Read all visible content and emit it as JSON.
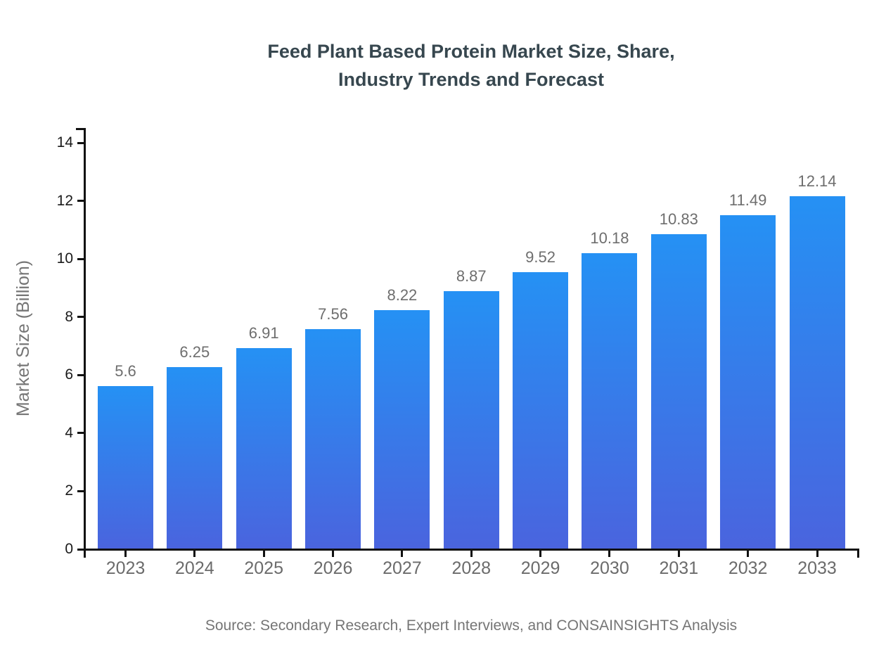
{
  "title": {
    "line1": "Feed Plant Based Protein Market Size, Share,",
    "line2": "Industry Trends and Forecast"
  },
  "source_note": "Source: Secondary Research, Expert Interviews, and CONSAINSIGHTS Analysis",
  "chart_data": {
    "type": "bar",
    "title": "Feed Plant Based Protein Market Size, Share, Industry Trends and Forecast",
    "categories": [
      "2023",
      "2024",
      "2025",
      "2026",
      "2027",
      "2028",
      "2029",
      "2030",
      "2031",
      "2032",
      "2033"
    ],
    "values": [
      5.6,
      6.25,
      6.91,
      7.56,
      8.22,
      8.87,
      9.52,
      10.18,
      10.83,
      11.49,
      12.14
    ],
    "value_labels": [
      "5.6",
      "6.25",
      "6.91",
      "7.56",
      "8.22",
      "8.87",
      "9.52",
      "10.18",
      "10.83",
      "11.49",
      "12.14"
    ],
    "xlabel": "",
    "ylabel": "Market Size (Billion)",
    "ylim": [
      0,
      14
    ],
    "yticks": [
      0,
      2,
      4,
      6,
      8,
      10,
      12,
      14
    ],
    "grid": false,
    "legend": false,
    "bar_gradient_top": "#2591F4",
    "bar_gradient_bottom": "#4A64DE",
    "axis_color": "#111111",
    "y_tick_label_color": "#1a1a1a",
    "x_tick_label_color": "#6B6B6B",
    "value_label_color": "#6E6E6E",
    "title_color": "#37474F",
    "source_color": "#757575"
  }
}
